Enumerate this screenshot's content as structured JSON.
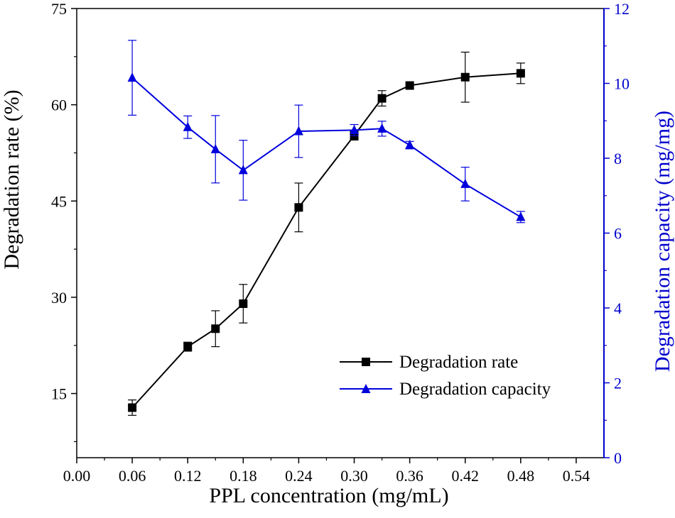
{
  "chart_data": {
    "type": "line",
    "title": "",
    "xlabel": "PPL concentration (mg/mL)",
    "ylabel": "Degradation rate (%)",
    "y2label": "Degradation capacity (mg/mg)",
    "xlim": [
      0.0,
      0.57
    ],
    "ylim": [
      5,
      75
    ],
    "y2lim": [
      0,
      12
    ],
    "x_ticks": [
      "0.00",
      "0.06",
      "0.12",
      "0.18",
      "0.24",
      "0.30",
      "0.36",
      "0.42",
      "0.48",
      "0.54"
    ],
    "y_ticks": [
      "15",
      "30",
      "45",
      "60",
      "75"
    ],
    "y2_ticks": [
      "0",
      "2",
      "4",
      "6",
      "8",
      "10",
      "12"
    ],
    "grid": false,
    "legend_position": "bottom-right",
    "colors": {
      "axis_left": "#000000",
      "axis_right": "#0000cc"
    },
    "series": [
      {
        "name": "Degradation rate",
        "axis": "left",
        "color": "#000000",
        "marker": "square",
        "x": [
          0.06,
          0.12,
          0.15,
          0.18,
          0.24,
          0.3,
          0.33,
          0.36,
          0.42,
          0.48
        ],
        "values": [
          12.8,
          22.3,
          25.1,
          29.0,
          44.0,
          55.2,
          61.0,
          63.0,
          64.3,
          64.9
        ],
        "errors": [
          1.2,
          0.7,
          2.8,
          3.0,
          3.8,
          0.7,
          1.2,
          0.4,
          3.9,
          1.6
        ]
      },
      {
        "name": "Degradation capacity",
        "axis": "right",
        "color": "#0000dd",
        "marker": "triangle",
        "x": [
          0.06,
          0.12,
          0.15,
          0.18,
          0.24,
          0.3,
          0.33,
          0.36,
          0.42,
          0.48
        ],
        "values": [
          10.15,
          8.83,
          8.24,
          7.68,
          8.72,
          8.75,
          8.79,
          8.35,
          7.31,
          6.43
        ],
        "errors": [
          1.0,
          0.3,
          0.9,
          0.8,
          0.7,
          0.15,
          0.2,
          0.1,
          0.45,
          0.15
        ]
      }
    ]
  }
}
